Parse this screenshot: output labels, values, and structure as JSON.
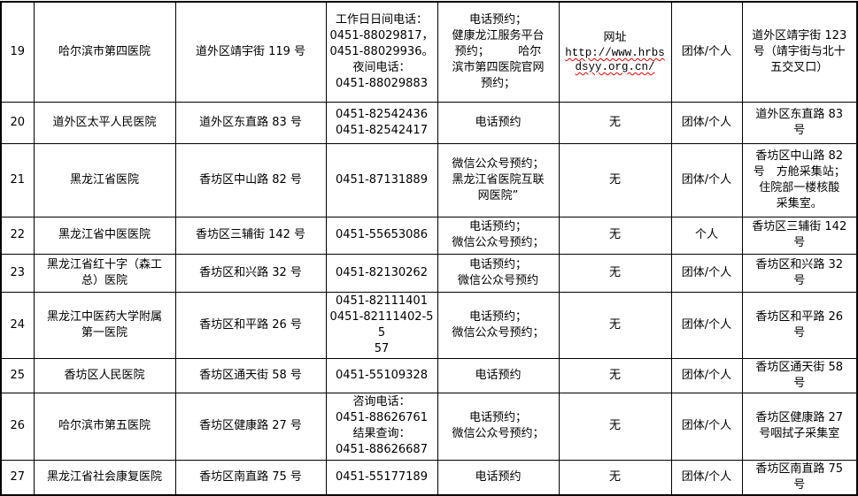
{
  "page": {
    "background": "#ffffff",
    "text_color": "#000000"
  },
  "table": {
    "border_color": "#000000",
    "url_underline_color": "#ff0000",
    "columns": [
      {
        "key": "num",
        "name": "serial-number",
        "width": 37
      },
      {
        "key": "name",
        "name": "hospital-name",
        "width": 160
      },
      {
        "key": "address",
        "name": "hospital-address",
        "width": 170
      },
      {
        "key": "phone",
        "name": "phone-numbers",
        "width": 126
      },
      {
        "key": "booking",
        "name": "booking-method",
        "width": 137
      },
      {
        "key": "website",
        "name": "website",
        "width": 127
      },
      {
        "key": "group",
        "name": "service-type",
        "width": 80
      },
      {
        "key": "location",
        "name": "sampling-location",
        "width": 130
      }
    ],
    "rows": [
      {
        "h": 113,
        "num": "19",
        "name": "哈尔滨市第四医院",
        "address": "道外区靖宇街 119 号",
        "phone": "工作日日间电话：\n0451-88029817，\n0451-88029936。\n夜间电话：\n0451-88029883",
        "booking": "电话预约；\n健康龙江服务平台\n预约；　　　哈尔\n滨市第四医院官网\n预约；",
        "website": {
          "label": "网址",
          "url": "http://www.hrbs\ndsyy.org.cn/"
        },
        "group": "团体/个人",
        "location": "道外区靖宇街 123\n号（靖宇街与北十\n五交叉口）"
      },
      {
        "h": 47,
        "num": "20",
        "name": "道外区太平人民医院",
        "address": "道外区东直路 83 号",
        "phone": "0451-82542436\n0451-82542417",
        "booking": "电话预约",
        "website": "无",
        "group": "团体/个人",
        "location": "道外区东直路 83\n号"
      },
      {
        "h": 83,
        "num": "21",
        "name": "黑龙江省医院",
        "address": "香坊区中山路 82 号",
        "phone": "0451-87131889",
        "booking": "微信公众号预约；\n黑龙江省医院互联\n网医院”",
        "website": "无",
        "group": "团体/个人",
        "location": "香坊区中山路 82\n号　方舱采集站；\n住院部一楼核酸\n采集室。"
      },
      {
        "h": 42,
        "num": "22",
        "name": "黑龙江省中医医院",
        "address": "香坊区三辅街 142 号",
        "phone": "0451-55653086",
        "booking": "电话预约；\n微信公众号预约；",
        "website": "无",
        "group": "个人",
        "location": "香坊区三辅街 142\n号"
      },
      {
        "h": 43,
        "num": "23",
        "name": "黑龙江省红十字（森工\n总）医院",
        "address": "香坊区和兴路 32 号",
        "phone": "0451-82130262",
        "booking": "电话预约；\n微信公众号预约",
        "website": "无",
        "group": "团体/个人",
        "location": "香坊区和兴路 32\n号"
      },
      {
        "h": 58,
        "num": "24",
        "name": "黑龙江中医药大学附属\n第一医院",
        "address": "香坊区和平路 26 号",
        "phone": "0451-82111401\n0451-82111402-55\n57",
        "booking": "电话预约；\n微信公众号预约；",
        "website": "无",
        "group": "团体/个人",
        "location": "香坊区和平路 26\n号"
      },
      {
        "h": 39,
        "num": "25",
        "name": "香坊区人民医院",
        "address": "香坊区通天街 58 号",
        "phone": "0451-55109328",
        "booking": "电话预约",
        "website": "无",
        "group": "团体/个人",
        "location": "香坊区通天街 58\n号"
      },
      {
        "h": 76,
        "num": "26",
        "name": "哈尔滨市第五医院",
        "address": "香坊区健康路 27 号",
        "phone": "咨询电话：\n0451-88626761\n结果查询：\n0451-88626687",
        "booking": "电话预约；\n微信公众号预约；",
        "website": "无",
        "group": "团体/个人",
        "location": "香坊区健康路 27\n号咽拭子采集室"
      },
      {
        "h": 40,
        "num": "27",
        "name": "黑龙江省社会康复医院",
        "address": "香坊区南直路 75 号",
        "phone": "0451-55177189",
        "booking": "电话预约",
        "website": "无",
        "group": "团体/个人",
        "location": "香坊区南直路 75\n号"
      }
    ]
  }
}
